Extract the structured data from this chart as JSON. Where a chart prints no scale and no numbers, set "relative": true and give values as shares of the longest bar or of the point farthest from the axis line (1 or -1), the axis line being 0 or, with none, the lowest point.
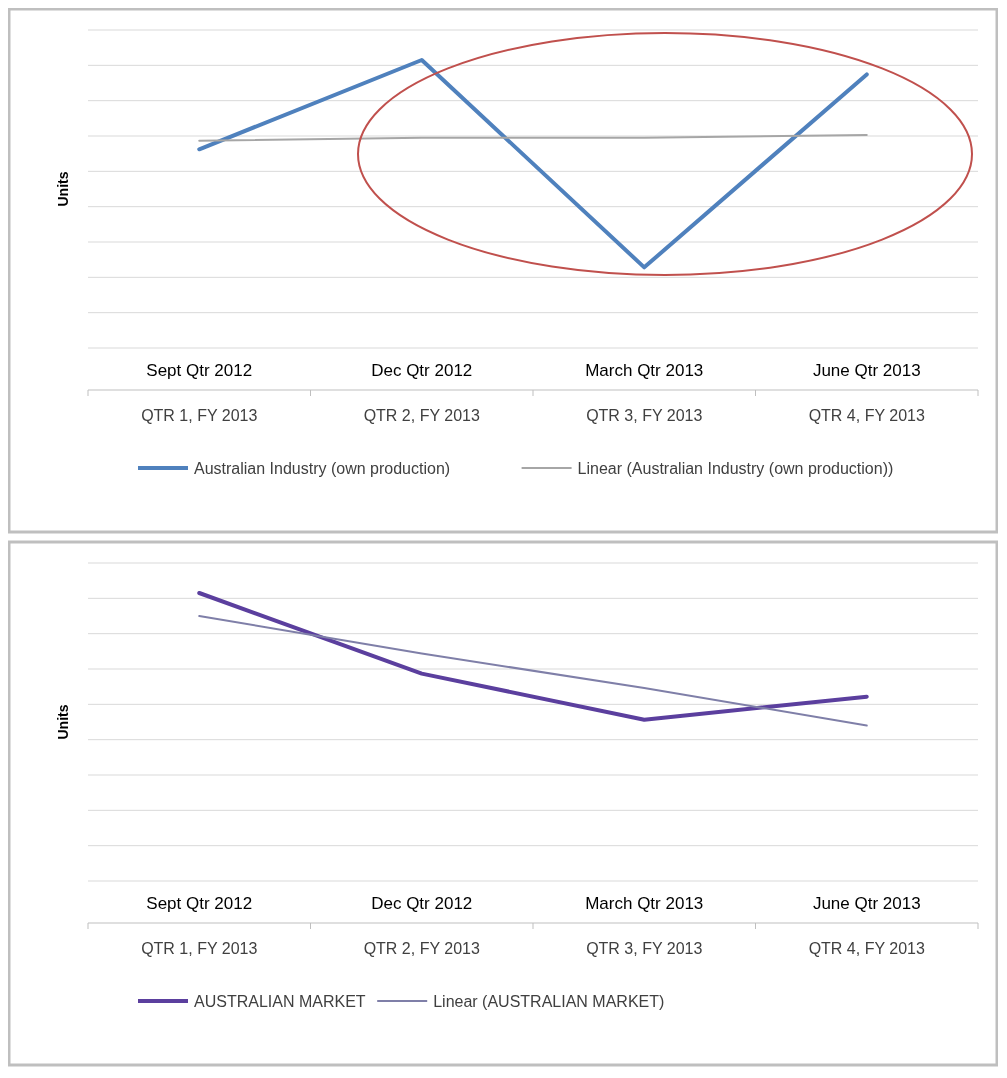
{
  "chart_data": [
    {
      "type": "line",
      "relative": true,
      "ylabel": "Units",
      "categories": [
        "Sept Qtr 2012\nQTR 1, FY 2013",
        "Dec Qtr 2012\nQTR 2, FY 2013",
        "March Qtr 2013\nQTR 3, FY 2013",
        "June Qtr 2013\nQTR 4, FY 2013"
      ],
      "series": [
        {
          "name": "Australian Industry (own production)",
          "color": "#4f81bd",
          "values": [
            0.69,
            1,
            0.28,
            0.95
          ]
        },
        {
          "name": "Linear (Australian Industry (own production))",
          "color": "#a6a6a6",
          "values": [
            0.72,
            0.73,
            0.73,
            0.74
          ]
        }
      ],
      "grid": true,
      "legend": "bottom",
      "marker": "none"
    },
    {
      "type": "line",
      "relative": true,
      "ylabel": "Units",
      "categories": [
        "Sept Qtr 2012\nQTR 1, FY 2013",
        "Dec Qtr 2012\nQTR 2, FY 2013",
        "March Qtr 2013\nQTR 3, FY 2013",
        "June Qtr 2013\nQTR 4, FY 2013"
      ],
      "series": [
        {
          "name": "AUSTRALIAN MARKET",
          "color": "#5b3f9e",
          "values": [
            1,
            0.72,
            0.56,
            0.64
          ]
        },
        {
          "name": "Linear (AUSTRALIAN MARKET)",
          "color": "#7f7fa8",
          "values": [
            0.92,
            0.79,
            0.67,
            0.54
          ]
        }
      ],
      "grid": true,
      "legend": "bottom",
      "marker": "none"
    }
  ]
}
